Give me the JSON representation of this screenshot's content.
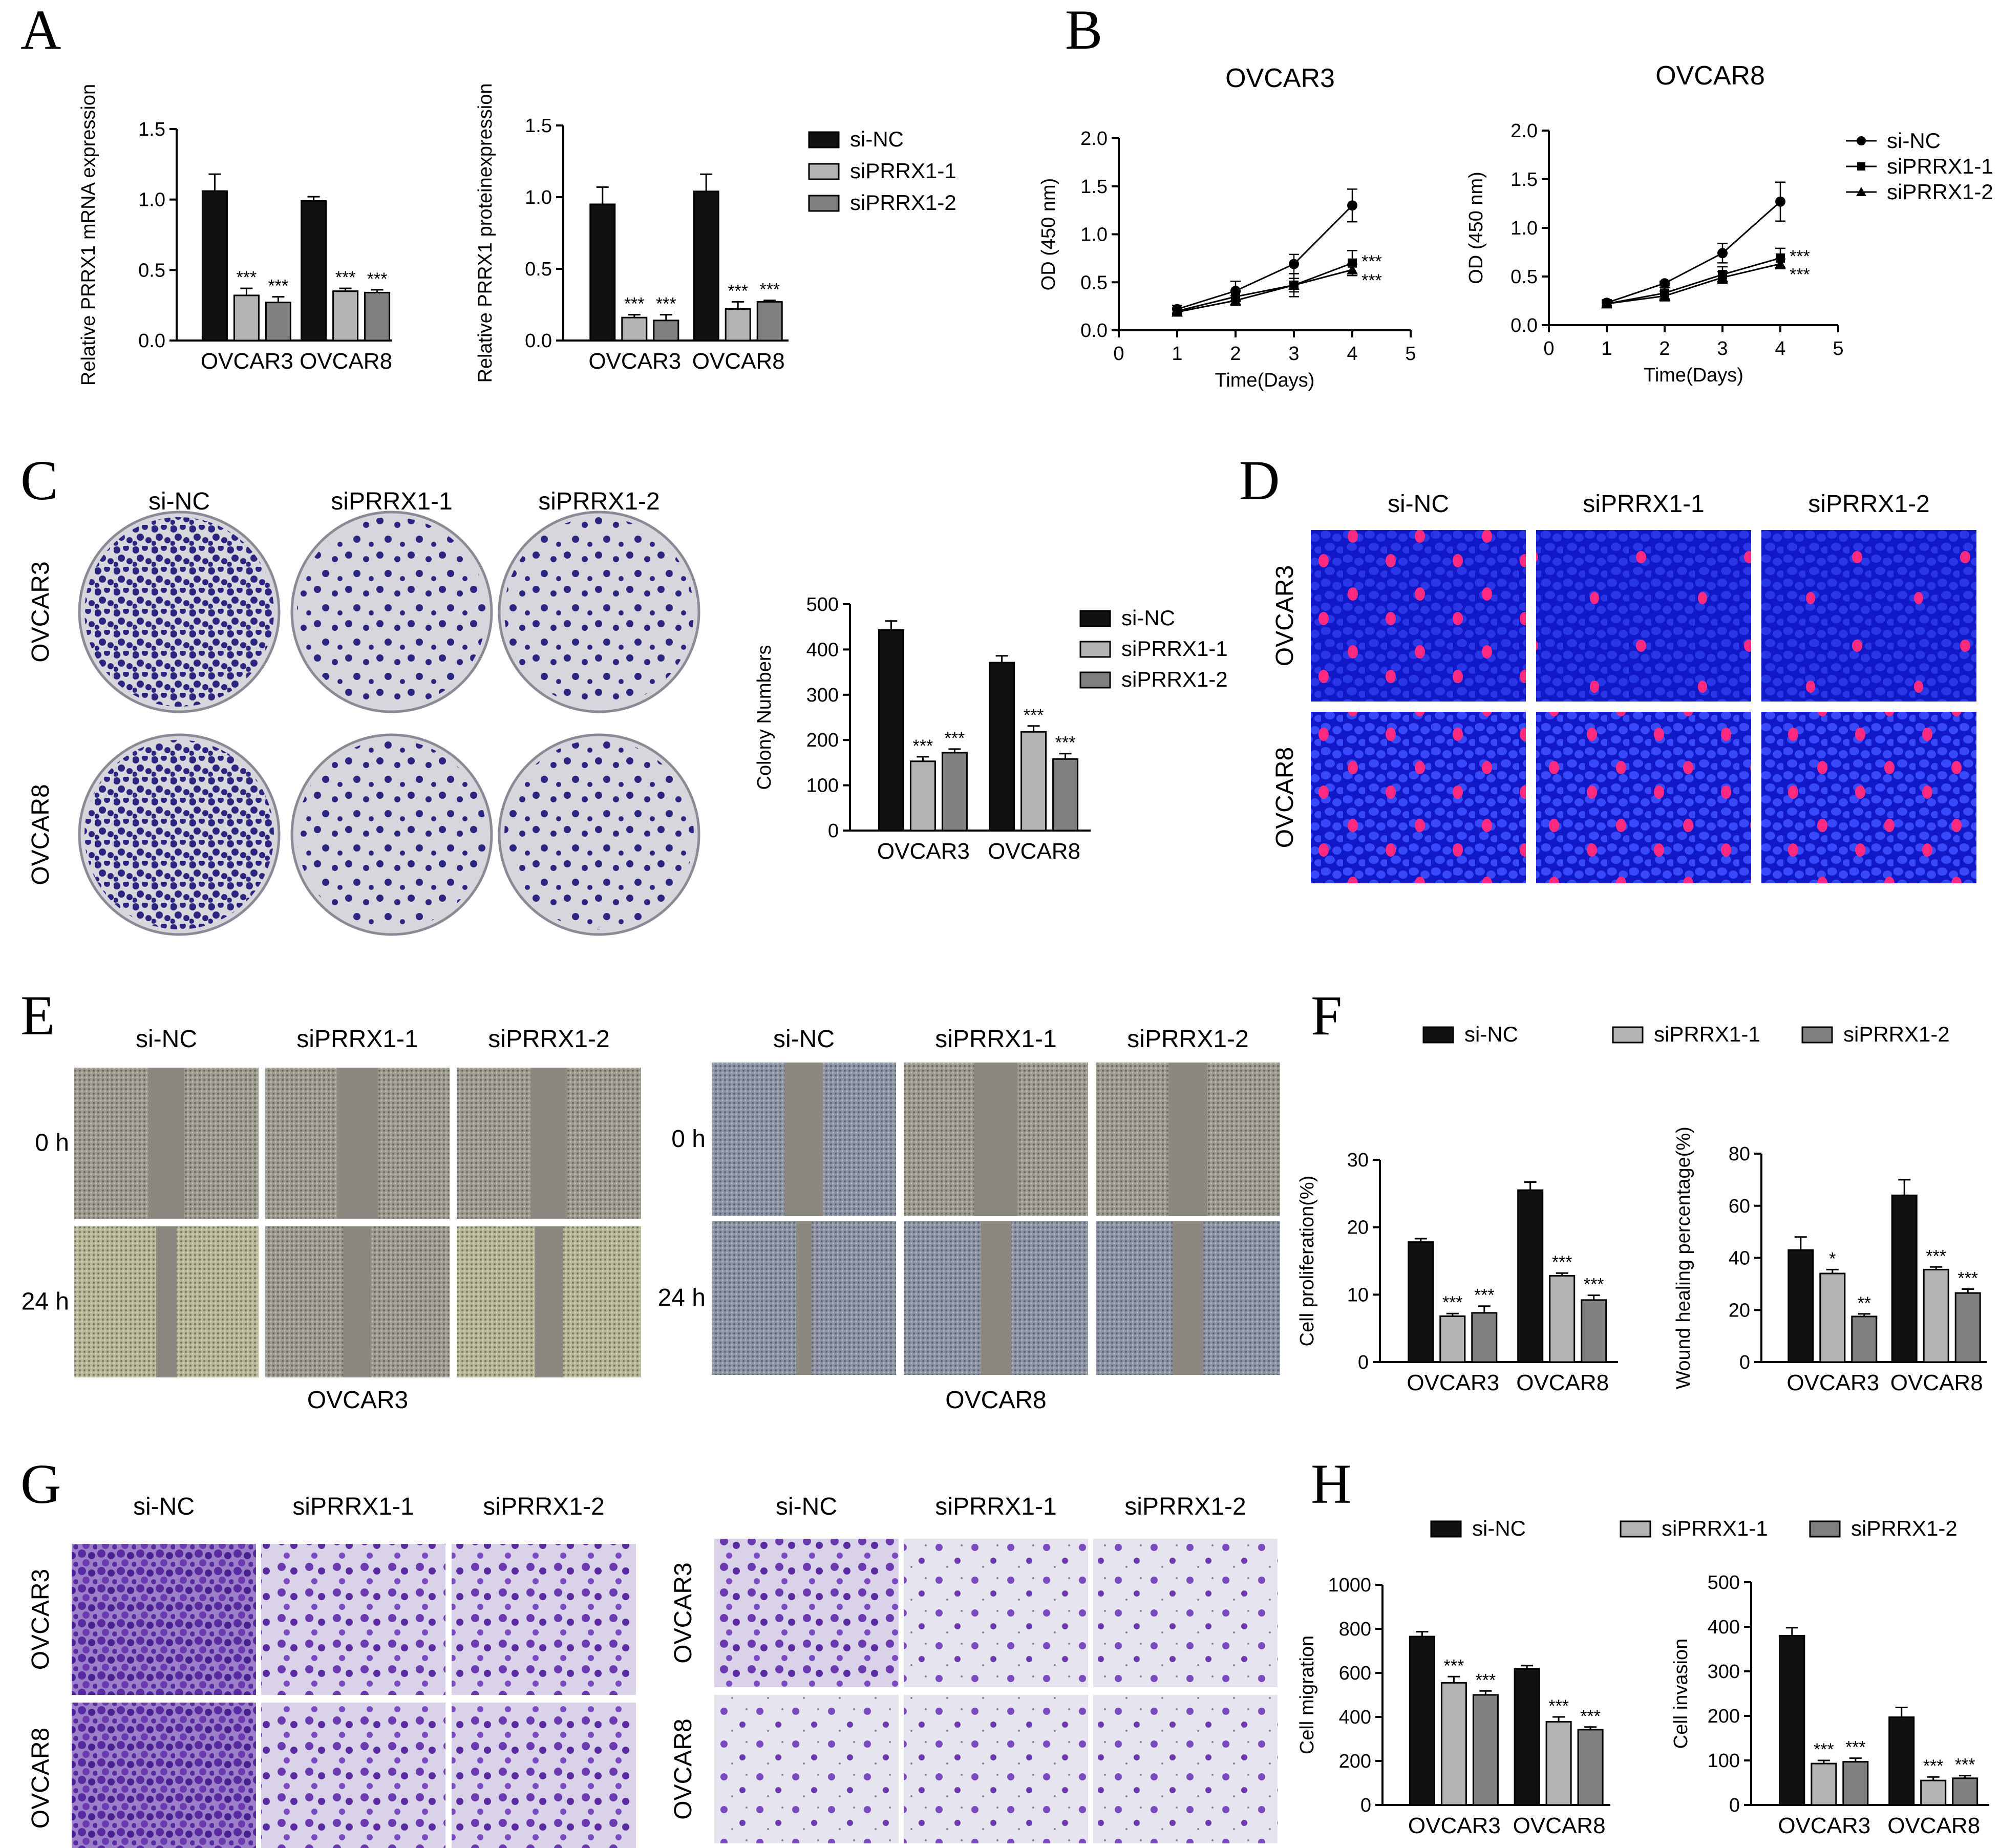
{
  "panels": {
    "A": "A",
    "B": "B",
    "C": "C",
    "D": "D",
    "E": "E",
    "F": "F",
    "G": "G",
    "H": "H"
  },
  "colors": {
    "si-NC": "#111111",
    "siPRRX1-1": "#b3b3b3",
    "siPRRX1-2": "#808080",
    "plate": "#d6d6dc",
    "colony": "#2b2580",
    "fluor_bg": "#1018c8",
    "fluor_nuc": "#3a4cff",
    "edu": "#ff2a80",
    "wound_bg": "#8a8a8a",
    "transwell_bg": "#e6e4ee",
    "transwell_cell": "#6a3aa8"
  },
  "legend": [
    "si-NC",
    "siPRRX1-1",
    "siPRRX1-2"
  ],
  "conditions": [
    "si-NC",
    "siPRRX1-1",
    "siPRRX1-2"
  ],
  "cell_lines": [
    "OVCAR3",
    "OVCAR8"
  ],
  "timepoints": [
    "0 h",
    "24 h"
  ],
  "chart_data": [
    {
      "id": "A1",
      "type": "bar",
      "categories": [
        "OVCAR3",
        "OVCAR8"
      ],
      "series": [
        {
          "name": "si-NC",
          "values": [
            1.06,
            0.99
          ],
          "err": [
            0.12,
            0.03
          ]
        },
        {
          "name": "siPRRX1-1",
          "values": [
            0.32,
            0.35
          ],
          "err": [
            0.05,
            0.02
          ]
        },
        {
          "name": "siPRRX1-2",
          "values": [
            0.27,
            0.34
          ],
          "err": [
            0.04,
            0.02
          ]
        }
      ],
      "stars": [
        [
          "",
          "***",
          "***"
        ],
        [
          "",
          "***",
          "***"
        ]
      ],
      "ylabel": "Relative PRRX1 mRNA expression",
      "ylim": [
        0,
        1.5
      ],
      "yticks": [
        0,
        0.5,
        1.0,
        1.5
      ],
      "ytick_labels": [
        "0.0",
        "0.5",
        "1.0",
        "1.5"
      ]
    },
    {
      "id": "A2",
      "type": "bar",
      "categories": [
        "OVCAR3",
        "OVCAR8"
      ],
      "series": [
        {
          "name": "si-NC",
          "values": [
            0.95,
            1.04
          ],
          "err": [
            0.12,
            0.12
          ]
        },
        {
          "name": "siPRRX1-1",
          "values": [
            0.16,
            0.22
          ],
          "err": [
            0.02,
            0.05
          ]
        },
        {
          "name": "siPRRX1-2",
          "values": [
            0.14,
            0.27
          ],
          "err": [
            0.04,
            0.01
          ]
        }
      ],
      "stars": [
        [
          "",
          "***",
          "***"
        ],
        [
          "",
          "***",
          "***"
        ]
      ],
      "ylabel": "Relative PRRX1 proteinexpression",
      "ylim": [
        0,
        1.5
      ],
      "yticks": [
        0,
        0.5,
        1.0,
        1.5
      ],
      "ytick_labels": [
        "0.0",
        "0.5",
        "1.0",
        "1.5"
      ]
    },
    {
      "id": "B1",
      "type": "line",
      "title": "OVCAR3",
      "x": [
        1,
        2,
        3,
        4
      ],
      "series": [
        {
          "name": "si-NC",
          "marker": "circle",
          "values": [
            0.22,
            0.41,
            0.69,
            1.3
          ],
          "err": [
            0.04,
            0.1,
            0.1,
            0.17
          ]
        },
        {
          "name": "siPRRX1-1",
          "marker": "square",
          "values": [
            0.2,
            0.35,
            0.47,
            0.7
          ],
          "err": [
            0.03,
            0.05,
            0.12,
            0.13
          ]
        },
        {
          "name": "siPRRX1-2",
          "marker": "triangle",
          "values": [
            0.19,
            0.31,
            0.47,
            0.63
          ],
          "err": [
            0.03,
            0.05,
            0.07,
            0.06
          ]
        }
      ],
      "stars": [
        "***",
        "***"
      ],
      "xlabel": "Time(Days)",
      "ylabel": "OD (450 nm)",
      "xlim": [
        0,
        5
      ],
      "ylim": [
        0,
        2.0
      ],
      "xticks": [
        0,
        1,
        2,
        3,
        4,
        5
      ],
      "yticks": [
        0,
        0.5,
        1.0,
        1.5,
        2.0
      ],
      "ytick_labels": [
        "0.0",
        "0.5",
        "1.0",
        "1.5",
        "2.0"
      ]
    },
    {
      "id": "B2",
      "type": "line",
      "title": "OVCAR8",
      "x": [
        1,
        2,
        3,
        4
      ],
      "series": [
        {
          "name": "si-NC",
          "marker": "circle",
          "values": [
            0.23,
            0.43,
            0.74,
            1.27
          ],
          "err": [
            0.03,
            0.02,
            0.1,
            0.2
          ]
        },
        {
          "name": "siPRRX1-1",
          "marker": "square",
          "values": [
            0.22,
            0.33,
            0.52,
            0.69
          ],
          "err": [
            0.03,
            0.06,
            0.08,
            0.1
          ]
        },
        {
          "name": "siPRRX1-2",
          "marker": "triangle",
          "values": [
            0.22,
            0.3,
            0.49,
            0.63
          ],
          "err": [
            0.03,
            0.05,
            0.06,
            0.05
          ]
        }
      ],
      "stars": [
        "***",
        "***"
      ],
      "xlabel": "Time(Days)",
      "ylabel": "OD (450 nm)",
      "xlim": [
        0,
        5
      ],
      "ylim": [
        0,
        2.0
      ],
      "xticks": [
        0,
        1,
        2,
        3,
        4,
        5
      ],
      "yticks": [
        0,
        0.5,
        1.0,
        1.5,
        2.0
      ],
      "ytick_labels": [
        "0.0",
        "0.5",
        "1.0",
        "1.5",
        "2.0"
      ]
    },
    {
      "id": "C",
      "type": "bar",
      "categories": [
        "OVCAR3",
        "OVCAR8"
      ],
      "series": [
        {
          "name": "si-NC",
          "values": [
            443,
            371
          ],
          "err": [
            20,
            15
          ]
        },
        {
          "name": "siPRRX1-1",
          "values": [
            153,
            218
          ],
          "err": [
            10,
            13
          ]
        },
        {
          "name": "siPRRX1-2",
          "values": [
            172,
            158
          ],
          "err": [
            8,
            12
          ]
        }
      ],
      "stars": [
        [
          "",
          "***",
          "***"
        ],
        [
          "",
          "***",
          "***"
        ]
      ],
      "ylabel": "Colony Numbers",
      "ylim": [
        0,
        500
      ],
      "yticks": [
        0,
        100,
        200,
        300,
        400,
        500
      ],
      "ytick_labels": [
        "0",
        "100",
        "200",
        "300",
        "400",
        "500"
      ]
    },
    {
      "id": "F1",
      "type": "bar",
      "categories": [
        "OVCAR3",
        "OVCAR8"
      ],
      "series": [
        {
          "name": "si-NC",
          "values": [
            17.8,
            25.5
          ],
          "err": [
            0.5,
            1.2
          ]
        },
        {
          "name": "siPRRX1-1",
          "values": [
            6.8,
            12.8
          ],
          "err": [
            0.4,
            0.4
          ]
        },
        {
          "name": "siPRRX1-2",
          "values": [
            7.3,
            9.2
          ],
          "err": [
            1.0,
            0.7
          ]
        }
      ],
      "stars": [
        [
          "",
          "***",
          "***"
        ],
        [
          "",
          "***",
          "***"
        ]
      ],
      "ylabel": "Cell proliferation(%)",
      "ylim": [
        0,
        30
      ],
      "yticks": [
        0,
        10,
        20,
        30
      ],
      "ytick_labels": [
        "0",
        "10",
        "20",
        "30"
      ]
    },
    {
      "id": "F2",
      "type": "bar",
      "categories": [
        "OVCAR3",
        "OVCAR8"
      ],
      "series": [
        {
          "name": "si-NC",
          "values": [
            43,
            64
          ],
          "err": [
            5,
            6
          ]
        },
        {
          "name": "siPRRX1-1",
          "values": [
            34,
            35.5
          ],
          "err": [
            1.5,
            1.0
          ]
        },
        {
          "name": "siPRRX1-2",
          "values": [
            17.5,
            26.5
          ],
          "err": [
            1.0,
            1.5
          ]
        }
      ],
      "stars": [
        [
          "",
          "*",
          "**"
        ],
        [
          "",
          "***",
          "***"
        ]
      ],
      "ylabel": "Wound healing percentage(%)",
      "ylim": [
        0,
        80
      ],
      "yticks": [
        0,
        20,
        40,
        60,
        80
      ],
      "ytick_labels": [
        "0",
        "20",
        "40",
        "60",
        "80"
      ]
    },
    {
      "id": "H1",
      "type": "bar",
      "categories": [
        "OVCAR3",
        "OVCAR8"
      ],
      "series": [
        {
          "name": "si-NC",
          "values": [
            765,
            618
          ],
          "err": [
            22,
            15
          ]
        },
        {
          "name": "siPRRX1-1",
          "values": [
            555,
            378
          ],
          "err": [
            28,
            22
          ]
        },
        {
          "name": "siPRRX1-2",
          "values": [
            500,
            342
          ],
          "err": [
            18,
            12
          ]
        }
      ],
      "stars": [
        [
          "",
          "***",
          "***"
        ],
        [
          "",
          "***",
          "***"
        ]
      ],
      "ylabel": "Cell migration",
      "ylim": [
        0,
        1000
      ],
      "yticks": [
        0,
        200,
        400,
        600,
        800,
        1000
      ],
      "ytick_labels": [
        "0",
        "200",
        "400",
        "600",
        "800",
        "1000"
      ]
    },
    {
      "id": "H2",
      "type": "bar",
      "categories": [
        "OVCAR3",
        "OVCAR8"
      ],
      "series": [
        {
          "name": "si-NC",
          "values": [
            380,
            197
          ],
          "err": [
            18,
            22
          ]
        },
        {
          "name": "siPRRX1-1",
          "values": [
            93,
            55
          ],
          "err": [
            7,
            8
          ]
        },
        {
          "name": "siPRRX1-2",
          "values": [
            97,
            60
          ],
          "err": [
            8,
            6
          ]
        }
      ],
      "stars": [
        [
          "",
          "***",
          "***"
        ],
        [
          "",
          "***",
          "***"
        ]
      ],
      "ylabel": "Cell invasion",
      "ylim": [
        0,
        500
      ],
      "yticks": [
        0,
        100,
        200,
        300,
        400,
        500
      ],
      "ytick_labels": [
        "0",
        "100",
        "200",
        "300",
        "400",
        "500"
      ]
    }
  ]
}
